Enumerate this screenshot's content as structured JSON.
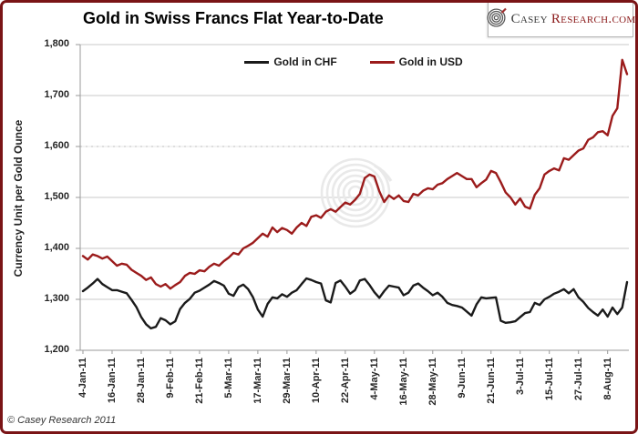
{
  "frame": {
    "border_color": "#7a1416",
    "background": "#ffffff"
  },
  "header": {
    "logo": {
      "part1": "Casey",
      "part2": "Research.com",
      "icon": "concentric-rings-icon"
    }
  },
  "footer": {
    "copyright": "© Casey Research 2011"
  },
  "chart_data": {
    "type": "line",
    "title": "Gold in Swiss Francs Flat Year-to-Date",
    "xlabel": "",
    "ylabel": "Currency Unit per Gold Ounce",
    "ylim": [
      1200,
      1800
    ],
    "grid": "horizontal",
    "dotted_gridline_value": 1600,
    "legend_position": "top-center",
    "watermark": "casey-research-rings",
    "ytick_values": [
      1800,
      1700,
      1600,
      1500,
      1400,
      1300,
      1200
    ],
    "ytick_labels": [
      "1,800",
      "1,700",
      "1,600",
      "1,500",
      "1,400",
      "1,300",
      "1,200"
    ],
    "x_tick_labels": [
      "4-Jan-11",
      "16-Jan-11",
      "28-Jan-11",
      "9-Feb-11",
      "21-Feb-11",
      "5-Mar-11",
      "17-Mar-11",
      "29-Mar-11",
      "10-Apr-11",
      "22-Apr-11",
      "4-May-11",
      "16-May-11",
      "28-May-11",
      "9-Jun-11",
      "21-Jun-11",
      "3-Jul-11",
      "15-Jul-11",
      "27-Jul-11",
      "8-Aug-11"
    ],
    "x_tick_interval_days": 12,
    "sample_interval_days": 2,
    "x_domain_days": [
      0,
      224
    ],
    "series": [
      {
        "name": "Gold in CHF",
        "color": "#1a1a1a",
        "values": [
          1316,
          1323,
          1331,
          1340,
          1330,
          1324,
          1318,
          1318,
          1315,
          1312,
          1299,
          1285,
          1265,
          1251,
          1243,
          1246,
          1263,
          1259,
          1251,
          1257,
          1281,
          1293,
          1301,
          1313,
          1317,
          1323,
          1329,
          1336,
          1332,
          1327,
          1311,
          1307,
          1324,
          1329,
          1320,
          1304,
          1280,
          1266,
          1291,
          1304,
          1302,
          1310,
          1305,
          1313,
          1318,
          1330,
          1341,
          1338,
          1334,
          1331,
          1298,
          1294,
          1332,
          1337,
          1325,
          1311,
          1318,
          1337,
          1340,
          1328,
          1314,
          1303,
          1316,
          1327,
          1325,
          1323,
          1308,
          1313,
          1327,
          1331,
          1323,
          1316,
          1308,
          1313,
          1305,
          1293,
          1289,
          1287,
          1284,
          1276,
          1268,
          1290,
          1304,
          1302,
          1303,
          1304,
          1258,
          1254,
          1255,
          1257,
          1265,
          1273,
          1275,
          1293,
          1289,
          1300,
          1305,
          1311,
          1315,
          1320,
          1312,
          1320,
          1304,
          1295,
          1283,
          1275,
          1268,
          1280,
          1266,
          1284,
          1271,
          1284,
          1334
        ]
      },
      {
        "name": "Gold in USD",
        "color": "#9b1b1b",
        "values": [
          1385,
          1378,
          1388,
          1385,
          1380,
          1384,
          1375,
          1366,
          1370,
          1368,
          1358,
          1352,
          1346,
          1338,
          1343,
          1330,
          1325,
          1330,
          1321,
          1328,
          1334,
          1346,
          1352,
          1350,
          1357,
          1355,
          1364,
          1370,
          1366,
          1375,
          1382,
          1391,
          1388,
          1400,
          1405,
          1411,
          1420,
          1429,
          1423,
          1441,
          1432,
          1440,
          1436,
          1429,
          1441,
          1450,
          1444,
          1462,
          1465,
          1460,
          1472,
          1477,
          1472,
          1481,
          1490,
          1486,
          1495,
          1507,
          1538,
          1545,
          1541,
          1512,
          1491,
          1504,
          1497,
          1504,
          1493,
          1491,
          1507,
          1504,
          1513,
          1518,
          1516,
          1525,
          1528,
          1536,
          1542,
          1548,
          1542,
          1536,
          1536,
          1520,
          1528,
          1535,
          1552,
          1548,
          1530,
          1510,
          1500,
          1486,
          1498,
          1482,
          1478,
          1505,
          1518,
          1545,
          1552,
          1557,
          1553,
          1577,
          1574,
          1583,
          1592,
          1596,
          1613,
          1618,
          1628,
          1630,
          1622,
          1660,
          1675,
          1770,
          1742
        ]
      }
    ]
  }
}
